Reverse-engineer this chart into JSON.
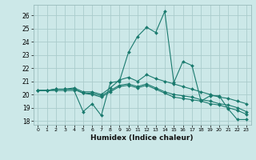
{
  "title": "",
  "xlabel": "Humidex (Indice chaleur)",
  "background_color": "#cce8e8",
  "grid_color": "#aacccc",
  "line_color": "#1a7a6e",
  "xlim": [
    -0.5,
    23.5
  ],
  "ylim": [
    17.7,
    26.8
  ],
  "yticks": [
    18,
    19,
    20,
    21,
    22,
    23,
    24,
    25,
    26
  ],
  "xtick_labels": [
    "0",
    "1",
    "2",
    "3",
    "4",
    "5",
    "6",
    "7",
    "8",
    "9",
    "10",
    "11",
    "12",
    "13",
    "14",
    "15",
    "16",
    "17",
    "18",
    "19",
    "20",
    "21",
    "22",
    "23"
  ],
  "series": [
    [
      20.3,
      20.3,
      20.3,
      20.3,
      20.3,
      18.7,
      19.3,
      18.4,
      20.9,
      21.0,
      23.2,
      24.4,
      25.1,
      24.7,
      26.3,
      20.9,
      22.5,
      22.2,
      19.5,
      19.9,
      19.9,
      18.9,
      18.1,
      18.1
    ],
    [
      20.3,
      20.3,
      20.4,
      20.4,
      20.5,
      20.2,
      20.2,
      20.0,
      20.5,
      21.1,
      21.3,
      21.0,
      21.5,
      21.2,
      21.0,
      20.8,
      20.6,
      20.4,
      20.2,
      20.0,
      19.8,
      19.7,
      19.5,
      19.3
    ],
    [
      20.3,
      20.3,
      20.4,
      20.4,
      20.4,
      20.1,
      20.0,
      19.8,
      20.2,
      20.6,
      20.7,
      20.5,
      20.7,
      20.4,
      20.1,
      19.8,
      19.7,
      19.6,
      19.5,
      19.3,
      19.2,
      19.0,
      18.8,
      18.5
    ],
    [
      20.3,
      20.3,
      20.4,
      20.4,
      20.4,
      20.1,
      20.1,
      19.9,
      20.3,
      20.7,
      20.8,
      20.6,
      20.8,
      20.5,
      20.2,
      20.0,
      19.9,
      19.8,
      19.6,
      19.5,
      19.3,
      19.2,
      19.0,
      18.7
    ]
  ]
}
